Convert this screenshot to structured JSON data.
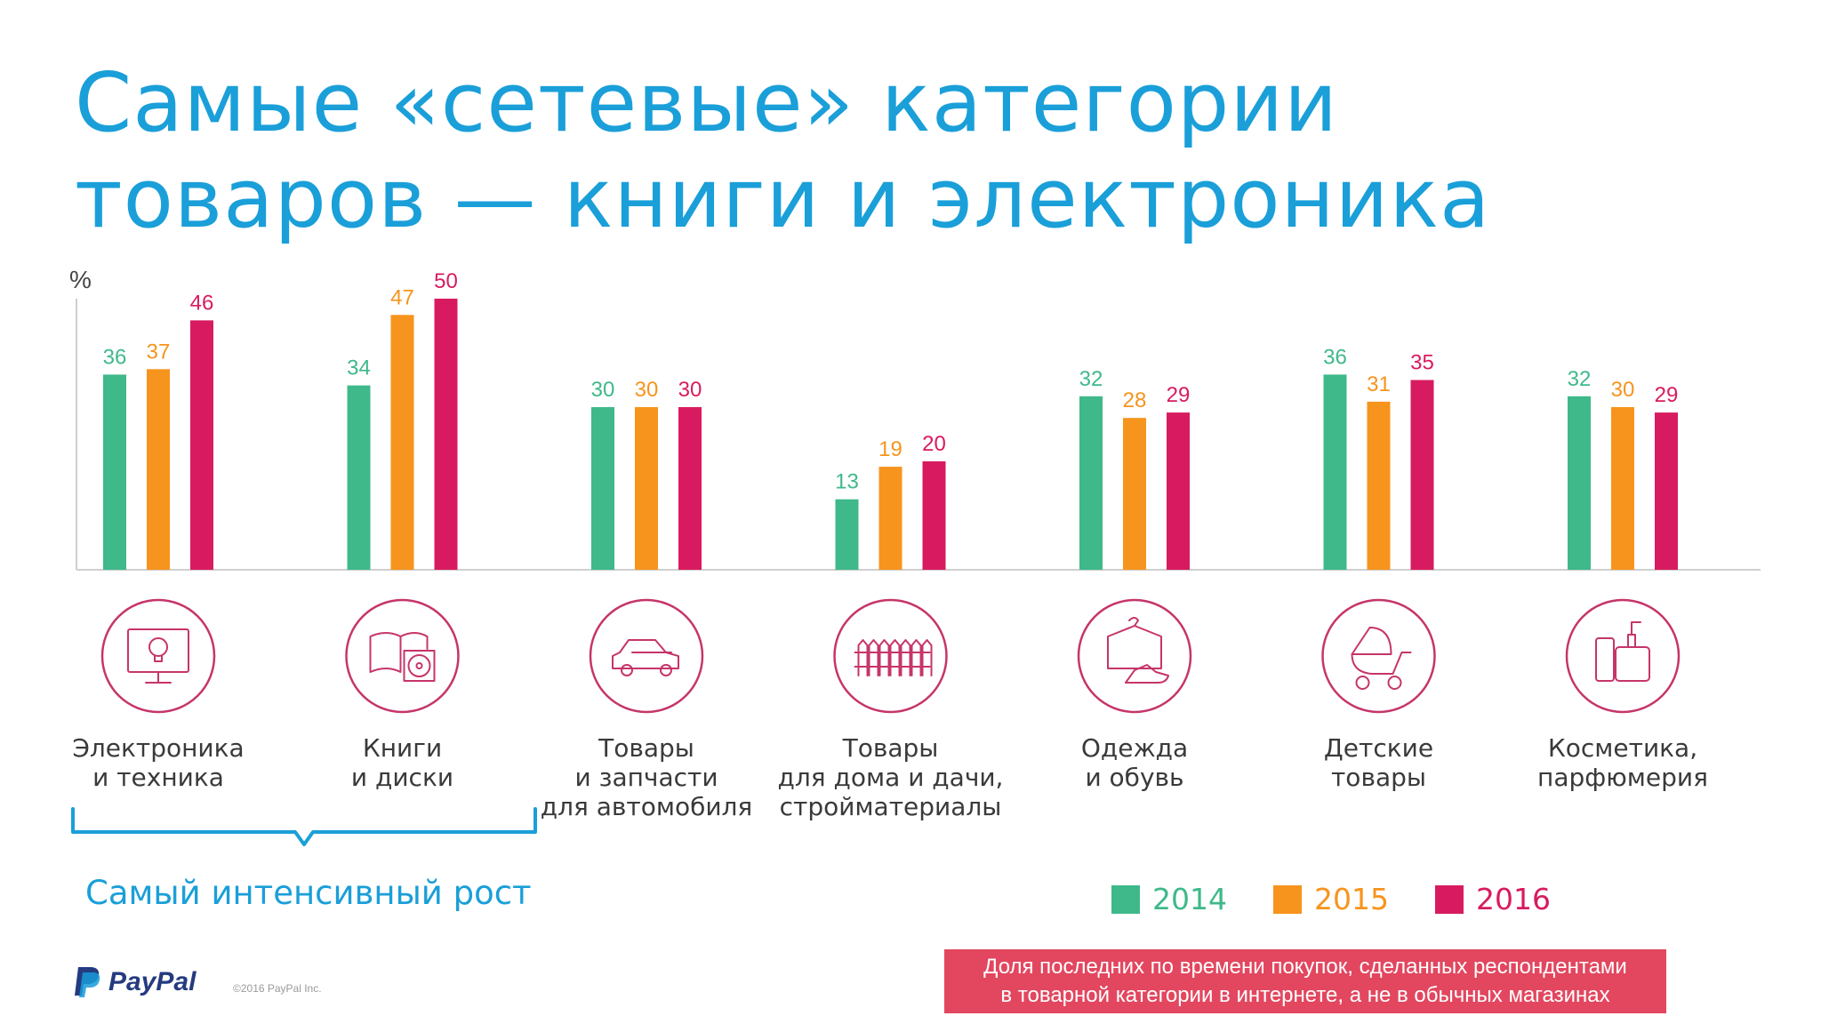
{
  "title": {
    "line1": "Самые «сетевые» категории",
    "line2": "товаров — книги и электроника"
  },
  "chart_data": {
    "type": "bar",
    "ylabel": "%",
    "ylim": [
      0,
      50
    ],
    "grid": false,
    "legend_position": "bottom-right",
    "categories": [
      [
        "Электроника",
        "и техника"
      ],
      [
        "Книги",
        "и диски"
      ],
      [
        "Товары",
        "и запчасти",
        "для автомобиля"
      ],
      [
        "Товары",
        "для дома и дачи,",
        "стройматериалы"
      ],
      [
        "Одежда",
        "и обувь"
      ],
      [
        "Детские",
        "товары"
      ],
      [
        "Косметика,",
        "парфюмерия"
      ]
    ],
    "icons": [
      "monitor-lightbulb-icon",
      "book-disc-icon",
      "car-icon",
      "fence-icon",
      "clothes-shoe-icon",
      "stroller-icon",
      "cosmetics-icon"
    ],
    "series": [
      {
        "name": "2014",
        "color": "#3fb98a",
        "values": [
          36,
          34,
          30,
          13,
          32,
          36,
          32
        ]
      },
      {
        "name": "2015",
        "color": "#f7941d",
        "values": [
          37,
          47,
          30,
          19,
          28,
          31,
          30
        ]
      },
      {
        "name": "2016",
        "color": "#d81b60",
        "values": [
          46,
          50,
          30,
          20,
          29,
          35,
          29
        ]
      }
    ],
    "annotation": "Самый интенсивный рост"
  },
  "colors": {
    "title": "#1a9fd9",
    "icon": "#c6356a",
    "note_bg": "#e2475f"
  },
  "note": {
    "line1": "Доля последних по времени покупок, сделанных респондентами",
    "line2": "в товарной категории в интернете, а не в обычных магазинах"
  },
  "footer": {
    "logo": "PayPal",
    "copyright": "©2016 PayPal Inc."
  }
}
